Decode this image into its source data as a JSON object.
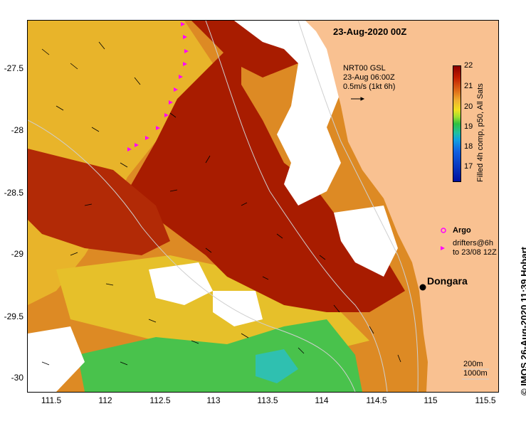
{
  "title": "23-Aug-2020 00Z",
  "y_ticks": [
    "-27.5",
    "-28",
    "-28.5",
    "-29",
    "-29.5",
    "-30"
  ],
  "x_ticks": [
    "111.5",
    "112",
    "112.5",
    "113",
    "113.5",
    "114",
    "114.5",
    "115",
    "115.5"
  ],
  "current_legend": {
    "line1": "NRT00 GSL",
    "line2": "23-Aug 06:00Z",
    "line3": "0.5m/s (1kt 6h)"
  },
  "colorbar": {
    "ticks": [
      "22",
      "21",
      "20",
      "19",
      "18",
      "17"
    ],
    "title": "Filled 4h comp, p50, All Sats"
  },
  "argo_label": "Argo",
  "drifters": {
    "line1": "drifters@6h",
    "line2": "to 23/08 12Z"
  },
  "town": "Dongara",
  "depth_legend": {
    "line1": "200m",
    "line2": "1000m"
  },
  "credit": "© IMOS 26-Aug-2020 11:39 Hobart",
  "colors": {
    "land": "#f9c191",
    "sst_warm": "#a81c00",
    "sst_mid": "#dd7a1e",
    "sst_cool": "#e8d42a",
    "sst_cold": "#3ec84a",
    "drifter": "#ff00ff"
  }
}
